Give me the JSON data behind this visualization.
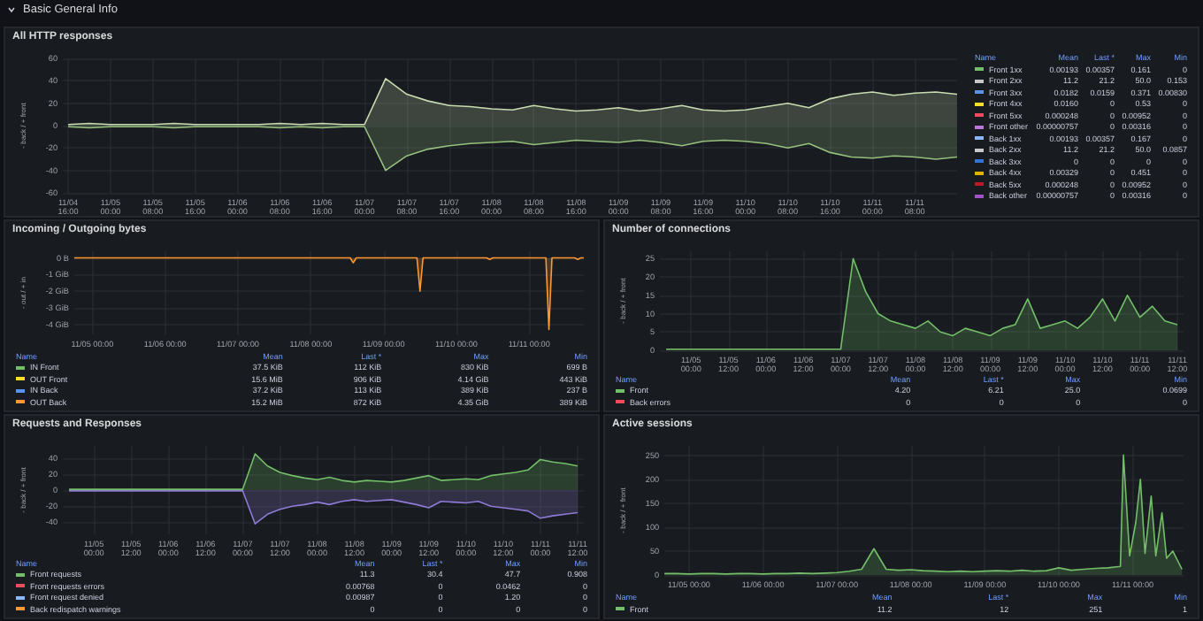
{
  "chart_data": [
    {
      "type": "other",
      "title": "Basic General Info"
    },
    {
      "type": "area",
      "title": "All HTTP responses",
      "ylabel": "- back / + front",
      "grid": true,
      "marker": "none",
      "line_style": "solid",
      "x": [
        "--11-04T16:00",
        "--11-04T20:00",
        "--11-05T00:00",
        "--11-05T04:00",
        "--11-05T08:00",
        "--11-05T12:00",
        "--11-05T16:00",
        "--11-05T20:00",
        "--11-06T00:00",
        "--11-06T04:00",
        "--11-06T08:00",
        "--11-06T12:00",
        "--11-06T16:00",
        "--11-06T20:00",
        "--11-07T00:00",
        "--11-07T04:00",
        "--11-07T08:00",
        "--11-07T12:00",
        "--11-07T16:00",
        "--11-07T20:00",
        "--11-08T00:00",
        "--11-08T04:00",
        "--11-08T08:00",
        "--11-08T12:00",
        "--11-08T16:00",
        "--11-08T20:00",
        "--11-09T00:00",
        "--11-09T04:00",
        "--11-09T08:00",
        "--11-09T12:00",
        "--11-09T16:00",
        "--11-09T20:00",
        "--11-10T00:00",
        "--11-10T04:00",
        "--11-10T08:00",
        "--11-10T12:00",
        "--11-10T16:00",
        "--11-10T20:00",
        "--11-11T00:00",
        "--11-11T04:00",
        "--11-11T08:00",
        "--11-11T12:00",
        "--11-11T16:00"
      ],
      "xlim": [
        "--11-04T15:00",
        "--11-11T16:00"
      ],
      "xticks": [
        {
          "value": "--11-04T16:00",
          "label": "11/04 16:00"
        },
        {
          "value": "--11-05T00:00",
          "label": "11/05 00:00"
        },
        {
          "value": "--11-05T08:00",
          "label": "11/05 08:00"
        },
        {
          "value": "--11-05T16:00",
          "label": "11/05 16:00"
        },
        {
          "value": "--11-06T00:00",
          "label": "11/06 00:00"
        },
        {
          "value": "--11-06T08:00",
          "label": "11/06 08:00"
        },
        {
          "value": "--11-06T16:00",
          "label": "11/06 16:00"
        },
        {
          "value": "--11-07T00:00",
          "label": "11/07 00:00"
        },
        {
          "value": "--11-07T08:00",
          "label": "11/07 08:00"
        },
        {
          "value": "--11-07T16:00",
          "label": "11/07 16:00"
        },
        {
          "value": "--11-08T00:00",
          "label": "11/08 00:00"
        },
        {
          "value": "--11-08T08:00",
          "label": "11/08 08:00"
        },
        {
          "value": "--11-08T16:00",
          "label": "11/08 16:00"
        },
        {
          "value": "--11-09T00:00",
          "label": "11/09 00:00"
        },
        {
          "value": "--11-09T08:00",
          "label": "11/09 08:00"
        },
        {
          "value": "--11-09T16:00",
          "label": "11/09 16:00"
        },
        {
          "value": "--11-10T00:00",
          "label": "11/10 00:00"
        },
        {
          "value": "--11-10T08:00",
          "label": "11/10 08:00"
        },
        {
          "value": "--11-10T16:00",
          "label": "11/10 16:00"
        },
        {
          "value": "--11-11T00:00",
          "label": "11/11 00:00"
        },
        {
          "value": "--11-11T08:00",
          "label": "11/11 08:00"
        }
      ],
      "ylim": [
        -60,
        60
      ],
      "yticks": [
        -60,
        -40,
        -20,
        0,
        20,
        40,
        60
      ],
      "annotations": [
        "Name",
        "Mean",
        "Last *",
        "Max",
        "Min",
        "Front 1xx",
        "0.00193",
        "0.00357",
        "0.161",
        "0",
        "Front 2xx",
        "11.2",
        "21.2",
        "50.0",
        "0.153",
        "Front 3xx",
        "0.0182",
        "0.0159",
        "0.371",
        "0.00830",
        "Front 4xx",
        "0.0160",
        "0",
        "0.53",
        "0",
        "Front 5xx",
        "0.000248",
        "0",
        "0.00952",
        "0",
        "Front other",
        "0.00000757",
        "0",
        "0.00316",
        "0",
        "Back 1xx",
        "0.00193",
        "0.00357",
        "0.167",
        "0",
        "Back 2xx",
        "11.2",
        "21.2",
        "50.0",
        "0.0857",
        "Back 3xx",
        "0",
        "0",
        "0",
        "0",
        "Back 4xx",
        "0.00329",
        "0",
        "0.451",
        "0",
        "Back 5xx",
        "0.000248",
        "0",
        "0.00952",
        "0",
        "Back other",
        "0.00000757",
        "0",
        "0.00316",
        "0"
      ],
      "series": [
        {
          "color": "#c8dcb0",
          "values": [
            1,
            2,
            1,
            1,
            1,
            2,
            1,
            1,
            1,
            1,
            2,
            1,
            2,
            1,
            1,
            42,
            28,
            22,
            18,
            17,
            15,
            14,
            18,
            15,
            13,
            14,
            16,
            13,
            15,
            18,
            14,
            13,
            14,
            17,
            20,
            16,
            24,
            28,
            30,
            27,
            29,
            30,
            28
          ]
        },
        {
          "color": "#96c07e",
          "values": [
            -1,
            -2,
            -1,
            -1,
            -1,
            -2,
            -1,
            -1,
            -1,
            -1,
            -2,
            -1,
            -2,
            -1,
            -1,
            -40,
            -27,
            -21,
            -18,
            -16,
            -15,
            -14,
            -17,
            -15,
            -13,
            -14,
            -15,
            -13,
            -15,
            -18,
            -14,
            -13,
            -14,
            -16,
            -20,
            -16,
            -24,
            -28,
            -29,
            -27,
            -28,
            -30,
            -28
          ]
        }
      ]
    },
    {
      "type": "area",
      "title": "Incoming / Outgoing bytes",
      "ylabel": "- out / + in",
      "grid": true,
      "marker": "none",
      "line_style": "solid",
      "xlim": [
        "--11-04T18:00",
        "--11-11T18:00"
      ],
      "xticks": [
        {
          "value": "--11-05T00:00",
          "label": "11/05 00:00"
        },
        {
          "value": "--11-06T00:00",
          "label": "11/06 00:00"
        },
        {
          "value": "--11-07T00:00",
          "label": "11/07 00:00"
        },
        {
          "value": "--11-08T00:00",
          "label": "11/08 00:00"
        },
        {
          "value": "--11-09T00:00",
          "label": "11/09 00:00"
        },
        {
          "value": "--11-10T00:00",
          "label": "11/10 00:00"
        },
        {
          "value": "--11-11T00:00",
          "label": "11/11 00:00"
        }
      ],
      "ylim": [
        -4.6,
        0.4
      ],
      "yticks": [
        {
          "value": 0,
          "label": "0 B"
        },
        {
          "value": -1,
          "label": "-1 GiB"
        },
        {
          "value": -2,
          "label": "-2 GiB"
        },
        {
          "value": -3,
          "label": "-3 GiB"
        },
        {
          "value": -4,
          "label": "-4 GiB"
        }
      ],
      "annotations": [
        "Name",
        "Mean",
        "Last *",
        "Max",
        "Min",
        "IN Front",
        "37.5 KiB",
        "112 KiB",
        "830 KiB",
        "699 B",
        "OUT Front",
        "15.6 MiB",
        "906 KiB",
        "4.14 GiB",
        "443 KiB",
        "IN Back",
        "37.2 KiB",
        "113 KiB",
        "389 KiB",
        "237 B",
        "OUT Back",
        "15.2 MiB",
        "872 KiB",
        "4.35 GiB",
        "389 KiB"
      ],
      "series": [
        {
          "color": "#ff9830",
          "x": [
            "--11-04T18:00",
            "--11-08T13:00",
            "--11-08T14:00",
            "--11-08T15:00",
            "--11-09T11:00",
            "--11-09T12:00",
            "--11-09T13:00",
            "--11-10T10:00",
            "--11-10T11:00",
            "--11-10T12:00",
            "--11-11T05:30",
            "--11-11T06:30",
            "--11-11T07:30",
            "--11-11T15:00",
            "--11-11T16:00",
            "--11-11T17:00",
            "--11-11T18:00"
          ],
          "values": [
            0,
            0,
            -0.3,
            0,
            0,
            -2.0,
            0,
            0,
            -0.1,
            0,
            0,
            -4.3,
            0,
            0,
            -0.1,
            0,
            0
          ]
        }
      ]
    },
    {
      "type": "area",
      "title": "Number of connections",
      "ylabel": "- back / + front",
      "grid": true,
      "marker": "none",
      "line_style": "solid",
      "x": [
        "--11-04T16:00",
        "--11-04T20:00",
        "--11-05T00:00",
        "--11-05T04:00",
        "--11-05T08:00",
        "--11-05T12:00",
        "--11-05T16:00",
        "--11-05T20:00",
        "--11-06T00:00",
        "--11-06T04:00",
        "--11-06T08:00",
        "--11-06T12:00",
        "--11-06T16:00",
        "--11-06T20:00",
        "--11-07T00:00",
        "--11-07T04:00",
        "--11-07T08:00",
        "--11-07T12:00",
        "--11-07T16:00",
        "--11-07T20:00",
        "--11-08T00:00",
        "--11-08T04:00",
        "--11-08T08:00",
        "--11-08T12:00",
        "--11-08T16:00",
        "--11-08T20:00",
        "--11-09T00:00",
        "--11-09T04:00",
        "--11-09T08:00",
        "--11-09T12:00",
        "--11-09T16:00",
        "--11-09T20:00",
        "--11-10T00:00",
        "--11-10T04:00",
        "--11-10T08:00",
        "--11-10T12:00",
        "--11-10T16:00",
        "--11-10T20:00",
        "--11-11T00:00",
        "--11-11T04:00",
        "--11-11T08:00",
        "--11-11T12:00"
      ],
      "xlim": [
        "--11-04T14:00",
        "--11-11T14:00"
      ],
      "xticks": [
        {
          "value": "--11-05T00:00",
          "label": "11/05 00:00"
        },
        {
          "value": "--11-05T12:00",
          "label": "11/05 12:00"
        },
        {
          "value": "--11-06T00:00",
          "label": "11/06 00:00"
        },
        {
          "value": "--11-06T12:00",
          "label": "11/06 12:00"
        },
        {
          "value": "--11-07T00:00",
          "label": "11/07 00:00"
        },
        {
          "value": "--11-07T12:00",
          "label": "11/07 12:00"
        },
        {
          "value": "--11-08T00:00",
          "label": "11/08 00:00"
        },
        {
          "value": "--11-08T12:00",
          "label": "11/08 12:00"
        },
        {
          "value": "--11-09T00:00",
          "label": "11/09 00:00"
        },
        {
          "value": "--11-09T12:00",
          "label": "11/09 12:00"
        },
        {
          "value": "--11-10T00:00",
          "label": "11/10 00:00"
        },
        {
          "value": "--11-10T12:00",
          "label": "11/10 12:00"
        },
        {
          "value": "--11-11T00:00",
          "label": "11/11 00:00"
        },
        {
          "value": "--11-11T12:00",
          "label": "11/11 12:00"
        }
      ],
      "ylim": [
        0,
        27
      ],
      "yticks": [
        0,
        5,
        10,
        15,
        20,
        25
      ],
      "annotations": [
        "Name",
        "Mean",
        "Last *",
        "Max",
        "Min",
        "Front",
        "4.20",
        "6.21",
        "25.0",
        "0.0699",
        "Back errors",
        "0",
        "0",
        "0",
        "0"
      ],
      "series": [
        {
          "color": "#73bf69",
          "values": [
            0.3,
            0.3,
            0.3,
            0.3,
            0.3,
            0.3,
            0.3,
            0.3,
            0.3,
            0.3,
            0.3,
            0.3,
            0.3,
            0.3,
            0.3,
            25,
            16,
            10,
            8,
            7,
            6,
            8,
            5,
            4,
            6,
            5,
            4,
            6,
            7,
            14,
            6,
            7,
            8,
            6,
            9,
            14,
            8,
            15,
            9,
            12,
            8,
            7
          ]
        }
      ]
    },
    {
      "type": "area",
      "title": "Requests and Responses",
      "ylabel": "- back / + front",
      "grid": true,
      "marker": "none",
      "line_style": "solid",
      "x": [
        "--11-04T16:00",
        "--11-04T20:00",
        "--11-05T00:00",
        "--11-05T04:00",
        "--11-05T08:00",
        "--11-05T12:00",
        "--11-05T16:00",
        "--11-05T20:00",
        "--11-06T00:00",
        "--11-06T04:00",
        "--11-06T08:00",
        "--11-06T12:00",
        "--11-06T16:00",
        "--11-06T20:00",
        "--11-07T00:00",
        "--11-07T04:00",
        "--11-07T08:00",
        "--11-07T12:00",
        "--11-07T16:00",
        "--11-07T20:00",
        "--11-08T00:00",
        "--11-08T04:00",
        "--11-08T08:00",
        "--11-08T12:00",
        "--11-08T16:00",
        "--11-08T20:00",
        "--11-09T00:00",
        "--11-09T04:00",
        "--11-09T08:00",
        "--11-09T12:00",
        "--11-09T16:00",
        "--11-09T20:00",
        "--11-10T00:00",
        "--11-10T04:00",
        "--11-10T08:00",
        "--11-10T12:00",
        "--11-10T16:00",
        "--11-10T20:00",
        "--11-11T00:00",
        "--11-11T04:00",
        "--11-11T08:00",
        "--11-11T12:00"
      ],
      "xlim": [
        "--11-04T14:00",
        "--11-11T14:00"
      ],
      "xticks": [
        {
          "value": "--11-05T00:00",
          "label": "11/05 00:00"
        },
        {
          "value": "--11-05T12:00",
          "label": "11/05 12:00"
        },
        {
          "value": "--11-06T00:00",
          "label": "11/06 00:00"
        },
        {
          "value": "--11-06T12:00",
          "label": "11/06 12:00"
        },
        {
          "value": "--11-07T00:00",
          "label": "11/07 00:00"
        },
        {
          "value": "--11-07T12:00",
          "label": "11/07 12:00"
        },
        {
          "value": "--11-08T00:00",
          "label": "11/08 00:00"
        },
        {
          "value": "--11-08T12:00",
          "label": "11/08 12:00"
        },
        {
          "value": "--11-09T00:00",
          "label": "11/09 00:00"
        },
        {
          "value": "--11-09T12:00",
          "label": "11/09 12:00"
        },
        {
          "value": "--11-10T00:00",
          "label": "11/10 00:00"
        },
        {
          "value": "--11-10T12:00",
          "label": "11/10 12:00"
        },
        {
          "value": "--11-11T00:00",
          "label": "11/11 00:00"
        },
        {
          "value": "--11-11T12:00",
          "label": "11/11 12:00"
        }
      ],
      "ylim": [
        -55,
        55
      ],
      "yticks": [
        -40,
        -20,
        0,
        20,
        40
      ],
      "annotations": [
        "Name",
        "Mean",
        "Last *",
        "Max",
        "Min",
        "Front requests",
        "11.3",
        "30.4",
        "47.7",
        "0.908",
        "Front requests errors",
        "0.00768",
        "0",
        "0.0462",
        "0",
        "Front request denied",
        "0.00987",
        "0",
        "1.20",
        "0",
        "Back redispatch warnings",
        "0",
        "0",
        "0",
        "0"
      ],
      "series": [
        {
          "color": "#73bf69",
          "values": [
            1,
            1,
            1,
            1,
            1,
            1,
            1,
            1,
            1,
            1,
            1,
            1,
            1,
            1,
            1,
            45,
            30,
            22,
            18,
            15,
            13,
            16,
            12,
            10,
            12,
            11,
            10,
            12,
            15,
            18,
            12,
            13,
            14,
            13,
            18,
            20,
            22,
            25,
            38,
            35,
            33,
            30
          ]
        },
        {
          "color": "#8f7bd6",
          "values": [
            -1,
            -1,
            -1,
            -1,
            -1,
            -1,
            -1,
            -1,
            -1,
            -1,
            -1,
            -1,
            -1,
            -1,
            -1,
            -42,
            -30,
            -24,
            -20,
            -18,
            -15,
            -18,
            -14,
            -12,
            -14,
            -13,
            -12,
            -15,
            -18,
            -22,
            -14,
            -15,
            -16,
            -14,
            -20,
            -22,
            -24,
            -26,
            -35,
            -32,
            -30,
            -28
          ]
        }
      ]
    },
    {
      "type": "area",
      "title": "Active sessions",
      "ylabel": "- back / + front",
      "grid": true,
      "marker": "none",
      "line_style": "solid",
      "x": [
        "--11-04T16:00",
        "--11-04T20:00",
        "--11-05T00:00",
        "--11-05T04:00",
        "--11-05T08:00",
        "--11-05T12:00",
        "--11-05T16:00",
        "--11-05T20:00",
        "--11-06T00:00",
        "--11-06T04:00",
        "--11-06T08:00",
        "--11-06T12:00",
        "--11-06T16:00",
        "--11-06T20:00",
        "--11-07T00:00",
        "--11-07T04:00",
        "--11-07T08:00",
        "--11-07T12:00",
        "--11-07T16:00",
        "--11-07T20:00",
        "--11-08T00:00",
        "--11-08T04:00",
        "--11-08T08:00",
        "--11-08T12:00",
        "--11-08T16:00",
        "--11-08T20:00",
        "--11-09T00:00",
        "--11-09T04:00",
        "--11-09T08:00",
        "--11-09T12:00",
        "--11-09T16:00",
        "--11-09T20:00",
        "--11-10T00:00",
        "--11-10T04:00",
        "--11-10T08:00",
        "--11-10T12:00",
        "--11-10T16:00",
        "--11-10T20:00",
        "--11-10T21:00",
        "--11-10T23:00",
        "--11-11T01:00",
        "--11-11T02:30",
        "--11-11T04:00",
        "--11-11T06:00",
        "--11-11T07:30",
        "--11-11T09:30",
        "--11-11T11:00",
        "--11-11T13:00",
        "--11-11T16:00"
      ],
      "xlim": [
        "--11-04T16:00",
        "--11-11T16:30"
      ],
      "xticks": [
        {
          "value": "--11-05T00:00",
          "label": "11/05 00:00"
        },
        {
          "value": "--11-06T00:00",
          "label": "11/06 00:00"
        },
        {
          "value": "--11-07T00:00",
          "label": "11/07 00:00"
        },
        {
          "value": "--11-08T00:00",
          "label": "11/08 00:00"
        },
        {
          "value": "--11-09T00:00",
          "label": "11/09 00:00"
        },
        {
          "value": "--11-10T00:00",
          "label": "11/10 00:00"
        },
        {
          "value": "--11-11T00:00",
          "label": "11/11 00:00"
        }
      ],
      "ylim": [
        0,
        270
      ],
      "yticks": [
        0,
        50,
        100,
        150,
        200,
        250
      ],
      "annotations": [
        "Name",
        "Mean",
        "Last *",
        "Max",
        "Min",
        "Front",
        "11.2",
        "12",
        "251",
        "1"
      ],
      "series": [
        {
          "color": "#73bf69",
          "values": [
            3,
            3,
            2,
            3,
            3,
            2,
            3,
            3,
            2,
            3,
            3,
            4,
            3,
            4,
            5,
            8,
            12,
            55,
            12,
            10,
            11,
            9,
            8,
            7,
            8,
            7,
            8,
            9,
            8,
            10,
            8,
            9,
            15,
            10,
            12,
            14,
            15,
            18,
            251,
            40,
            110,
            200,
            45,
            165,
            40,
            130,
            35,
            50,
            12
          ]
        }
      ]
    }
  ]
}
